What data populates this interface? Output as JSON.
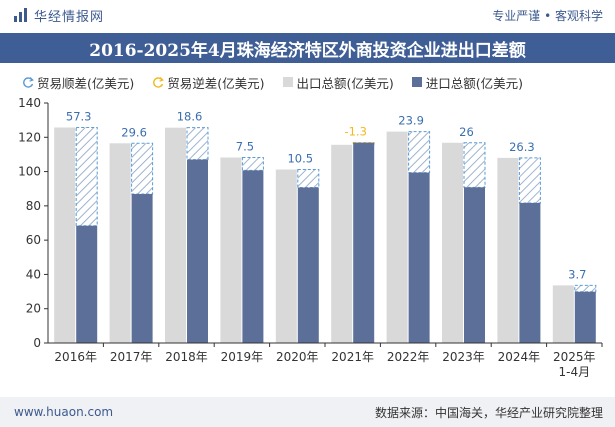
{
  "header": {
    "brand_name": "华经情报网",
    "tagline": "专业严谨 • 客观科学",
    "title": "2016-2025年4月珠海经济特区外商投资企业进出口差额"
  },
  "legend": {
    "surplus": "贸易顺差(亿美元)",
    "deficit": "贸易逆差(亿美元)",
    "export": "出口总额(亿美元)",
    "import": "进口总额(亿美元)"
  },
  "colors": {
    "export": "#d9d9d9",
    "import": "#5c6f98",
    "surplus": "#5b9bd5",
    "deficit": "#f3b91b",
    "title_bg": "#3f5e95",
    "label_blue": "#3a6fb0"
  },
  "chart_data": {
    "type": "bar",
    "categories": [
      "2016年",
      "2017年",
      "2018年",
      "2019年",
      "2020年",
      "2021年",
      "2022年",
      "2023年",
      "2024年",
      "2025年\n1-4月"
    ],
    "series": [
      {
        "name": "出口总额(亿美元)",
        "values": [
          125.7,
          116.5,
          125.6,
          108.2,
          101.2,
          115.6,
          123.3,
          116.8,
          108.0,
          33.6
        ]
      },
      {
        "name": "进口总额(亿美元)",
        "values": [
          68.4,
          86.9,
          107.0,
          100.7,
          90.7,
          116.9,
          99.4,
          90.8,
          81.7,
          29.9
        ]
      }
    ],
    "balance": [
      57.3,
      29.6,
      18.6,
      7.5,
      10.5,
      -1.3,
      23.9,
      26.0,
      26.3,
      3.7
    ],
    "balance_labels": [
      "57.3",
      "29.6",
      "18.6",
      "7.5",
      "10.5",
      "-1.3",
      "23.9",
      "26",
      "26.3",
      "3.7"
    ],
    "ylim": [
      0,
      140
    ],
    "yticks": [
      0,
      20,
      40,
      60,
      80,
      100,
      120,
      140
    ],
    "grid": false,
    "legend_position": "top-left"
  },
  "footer": {
    "site": "www.huaon.com",
    "source": "数据来源：中国海关，华经产业研究院整理"
  }
}
